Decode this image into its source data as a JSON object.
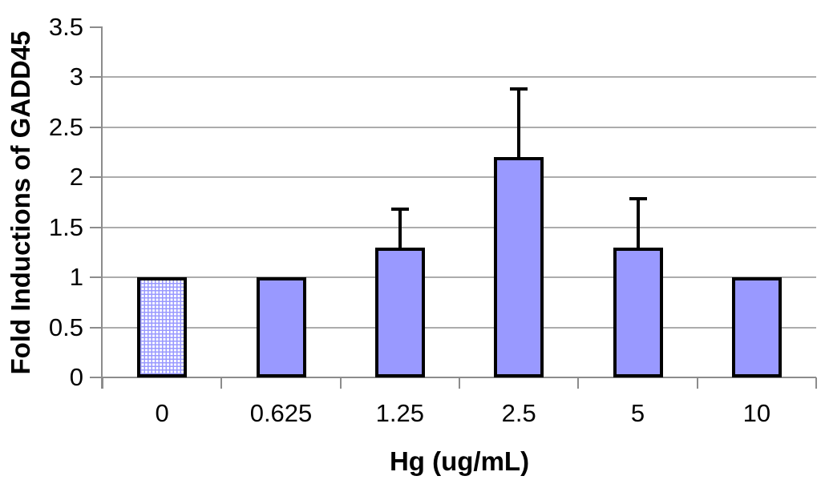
{
  "chart_data": {
    "type": "bar",
    "title": "",
    "xlabel": "Hg (ug/mL)",
    "ylabel": "Fold Inductions of GADD45",
    "categories": [
      "0",
      "0.625",
      "1.25",
      "2.5",
      "5",
      "10"
    ],
    "values": [
      1,
      1,
      1.3,
      2.2,
      1.3,
      1
    ],
    "errors_plus": [
      0,
      0,
      0.4,
      0.7,
      0.5,
      0
    ],
    "error_tops": [
      null,
      null,
      1.7,
      2.9,
      1.8,
      null
    ],
    "ylim": [
      0,
      3.5
    ],
    "ytick_interval": 0.5,
    "ytick_labels": [
      "0",
      "0.5",
      "1",
      "1.5",
      "2",
      "2.5",
      "3",
      "3.5"
    ],
    "grid": true,
    "legend": false,
    "bar_styles": [
      "dotted-grid-pattern",
      "solid",
      "solid",
      "solid",
      "solid",
      "solid"
    ],
    "colors": {
      "bar_fill": "#9999FF",
      "bar_border": "#000000",
      "pattern_bg": "#FFFFFF",
      "pattern_line": "#9999FF",
      "axis": "#8C8C8C",
      "gridline": "#ACACAC",
      "error_bar": "#000000",
      "text": "#000000",
      "background": "#FFFFFF"
    }
  }
}
